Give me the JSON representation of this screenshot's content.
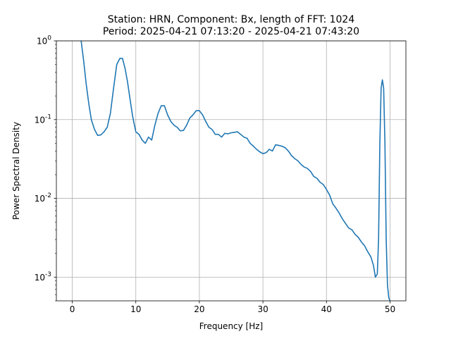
{
  "chart_data": {
    "type": "line",
    "title_line1": "Station: HRN, Component: Bx, length of FFT: 1024",
    "title_line2": "Period: 2025-04-21 07:13:20 - 2025-04-21 07:43:20",
    "xlabel": "Frequency [Hz]",
    "ylabel": "Power Spectral Density",
    "xlim": [
      -2.5,
      52.5
    ],
    "ylim": [
      0.0005,
      1
    ],
    "yscale": "log",
    "grid": true,
    "legend": "none",
    "x_ticks": [
      0,
      10,
      20,
      30,
      40,
      50
    ],
    "x_tick_labels": [
      "0",
      "10",
      "20",
      "30",
      "40",
      "50"
    ],
    "y_ticks": [
      0.001,
      0.01,
      0.1,
      1
    ],
    "y_tick_labels": [
      "10^-3",
      "10^-2",
      "10^-1",
      "10^0"
    ],
    "series": [
      {
        "color": "#1f77b4",
        "x": [
          1.4,
          1.8,
          2.2,
          2.6,
          3.0,
          3.5,
          4.0,
          4.5,
          5.0,
          5.5,
          6.0,
          6.5,
          7.0,
          7.5,
          7.9,
          8.3,
          8.7,
          9.1,
          9.5,
          10.0,
          10.5,
          11.0,
          11.5,
          12.0,
          12.5,
          13.0,
          13.5,
          14.0,
          14.5,
          15.0,
          15.5,
          16.0,
          16.5,
          17.0,
          17.5,
          18.0,
          18.5,
          19.0,
          19.5,
          20.0,
          20.5,
          21.0,
          21.5,
          22.0,
          22.5,
          23.0,
          23.5,
          24.0,
          24.5,
          25.0,
          25.5,
          26.0,
          26.5,
          27.0,
          27.5,
          28.0,
          28.5,
          29.0,
          29.5,
          30.0,
          30.5,
          31.0,
          31.5,
          32.0,
          32.5,
          33.0,
          33.5,
          34.0,
          34.5,
          35.0,
          35.5,
          36.0,
          36.5,
          37.0,
          37.5,
          38.0,
          38.5,
          39.0,
          39.5,
          40.0,
          40.5,
          41.0,
          41.5,
          42.0,
          42.5,
          43.0,
          43.5,
          44.0,
          44.5,
          45.0,
          45.5,
          46.0,
          46.5,
          47.0,
          47.4,
          47.7,
          48.0,
          48.2,
          48.4,
          48.6,
          48.8,
          49.0,
          49.2,
          49.4,
          49.6,
          49.8,
          50.0
        ],
        "y": [
          1.0,
          0.55,
          0.28,
          0.16,
          0.1,
          0.075,
          0.063,
          0.064,
          0.07,
          0.08,
          0.12,
          0.25,
          0.5,
          0.6,
          0.6,
          0.45,
          0.3,
          0.18,
          0.11,
          0.07,
          0.065,
          0.055,
          0.05,
          0.06,
          0.055,
          0.085,
          0.12,
          0.15,
          0.15,
          0.115,
          0.095,
          0.085,
          0.08,
          0.072,
          0.073,
          0.085,
          0.105,
          0.115,
          0.13,
          0.13,
          0.115,
          0.095,
          0.08,
          0.075,
          0.065,
          0.065,
          0.06,
          0.067,
          0.066,
          0.068,
          0.069,
          0.07,
          0.065,
          0.06,
          0.058,
          0.05,
          0.046,
          0.042,
          0.039,
          0.037,
          0.038,
          0.042,
          0.04,
          0.048,
          0.047,
          0.046,
          0.044,
          0.04,
          0.035,
          0.032,
          0.03,
          0.027,
          0.025,
          0.024,
          0.022,
          0.019,
          0.018,
          0.016,
          0.015,
          0.013,
          0.011,
          0.0085,
          0.0075,
          0.0065,
          0.0055,
          0.0048,
          0.0042,
          0.004,
          0.0035,
          0.0032,
          0.0028,
          0.0025,
          0.0021,
          0.0018,
          0.0014,
          0.001,
          0.0011,
          0.003,
          0.05,
          0.25,
          0.32,
          0.25,
          0.05,
          0.003,
          0.0008,
          0.00055,
          0.0005
        ]
      }
    ]
  }
}
